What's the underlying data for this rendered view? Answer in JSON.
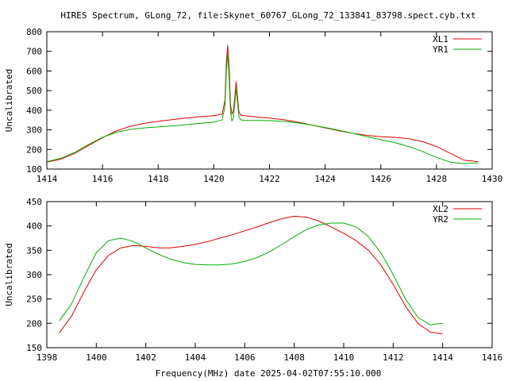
{
  "chart_data": [
    {
      "type": "line",
      "title": "HIRES Spectrum, GLong_72, file:Skynet_60767_GLong_72_133841_83798.spect.cyb.txt",
      "xlabel": "",
      "ylabel": "Uncalibrated",
      "xlim": [
        1414,
        1430
      ],
      "ylim": [
        100,
        800
      ],
      "xticks": [
        "1414",
        "1416",
        "1418",
        "1420",
        "1422",
        "1424",
        "1426",
        "1428",
        "1430"
      ],
      "yticks": [
        "100",
        "200",
        "300",
        "400",
        "500",
        "600",
        "700",
        "800"
      ],
      "legend_position": "top-right",
      "grid": false,
      "series": [
        {
          "name": "XL1",
          "color": "#e00000",
          "x": [
            1414.0,
            1414.5,
            1415.0,
            1415.5,
            1416.0,
            1416.5,
            1417.0,
            1417.5,
            1418.0,
            1418.5,
            1419.0,
            1419.5,
            1420.0,
            1420.3,
            1420.4,
            1420.45,
            1420.5,
            1420.55,
            1420.6,
            1420.65,
            1420.7,
            1420.75,
            1420.8,
            1420.85,
            1420.9,
            1420.95,
            1421.0,
            1421.1,
            1421.3,
            1421.6,
            1422.0,
            1422.5,
            1423.0,
            1423.5,
            1424.0,
            1424.5,
            1425.0,
            1425.5,
            1426.0,
            1426.5,
            1427.0,
            1427.5,
            1428.0,
            1428.5,
            1429.0,
            1429.5
          ],
          "y": [
            135,
            150,
            180,
            220,
            260,
            295,
            318,
            333,
            343,
            352,
            360,
            367,
            372,
            380,
            450,
            650,
            730,
            620,
            430,
            380,
            395,
            460,
            545,
            470,
            395,
            378,
            374,
            372,
            369,
            365,
            360,
            352,
            340,
            325,
            310,
            295,
            282,
            272,
            265,
            262,
            255,
            240,
            215,
            180,
            145,
            138
          ]
        },
        {
          "name": "YR1",
          "color": "#00b000",
          "x": [
            1414.0,
            1414.5,
            1415.0,
            1415.5,
            1416.0,
            1416.5,
            1417.0,
            1417.5,
            1418.0,
            1418.5,
            1419.0,
            1419.5,
            1420.0,
            1420.3,
            1420.4,
            1420.45,
            1420.5,
            1420.55,
            1420.6,
            1420.65,
            1420.7,
            1420.75,
            1420.8,
            1420.85,
            1420.9,
            1420.95,
            1421.0,
            1421.1,
            1421.3,
            1421.6,
            1422.0,
            1422.5,
            1423.0,
            1423.5,
            1424.0,
            1424.5,
            1425.0,
            1425.5,
            1426.0,
            1426.5,
            1427.0,
            1427.5,
            1428.0,
            1428.5,
            1429.0,
            1429.5
          ],
          "y": [
            138,
            155,
            185,
            225,
            262,
            288,
            302,
            310,
            315,
            320,
            326,
            333,
            340,
            350,
            420,
            600,
            690,
            560,
            390,
            345,
            360,
            430,
            510,
            440,
            370,
            354,
            350,
            349,
            348,
            348,
            347,
            343,
            336,
            325,
            312,
            298,
            282,
            265,
            250,
            235,
            215,
            190,
            160,
            135,
            128,
            132
          ]
        }
      ]
    },
    {
      "type": "line",
      "title": "",
      "xlabel": "Frequency(MHz) date 2025-04-02T07:55:10.000",
      "ylabel": "Uncalibrated",
      "xlim": [
        1398,
        1416
      ],
      "ylim": [
        150,
        450
      ],
      "xticks": [
        "1398",
        "1400",
        "1402",
        "1404",
        "1406",
        "1408",
        "1410",
        "1412",
        "1414",
        "1416"
      ],
      "yticks": [
        "150",
        "200",
        "250",
        "300",
        "350",
        "400",
        "450"
      ],
      "legend_position": "top-right",
      "grid": false,
      "series": [
        {
          "name": "XL2",
          "color": "#e00000",
          "x": [
            1398.5,
            1399.0,
            1399.5,
            1400.0,
            1400.5,
            1401.0,
            1401.5,
            1402.0,
            1402.5,
            1403.0,
            1403.5,
            1404.0,
            1404.5,
            1405.0,
            1405.5,
            1406.0,
            1406.5,
            1407.0,
            1407.5,
            1408.0,
            1408.5,
            1409.0,
            1409.5,
            1410.0,
            1410.5,
            1411.0,
            1411.5,
            1412.0,
            1412.5,
            1413.0,
            1413.5,
            1414.0
          ],
          "y": [
            180,
            215,
            265,
            310,
            340,
            355,
            360,
            358,
            355,
            355,
            358,
            362,
            368,
            375,
            382,
            390,
            398,
            407,
            415,
            420,
            418,
            410,
            398,
            385,
            370,
            350,
            320,
            280,
            235,
            200,
            182,
            178
          ]
        },
        {
          "name": "YR2",
          "color": "#00b000",
          "x": [
            1398.5,
            1399.0,
            1399.5,
            1400.0,
            1400.5,
            1401.0,
            1401.5,
            1402.0,
            1402.5,
            1403.0,
            1403.5,
            1404.0,
            1404.5,
            1405.0,
            1405.5,
            1406.0,
            1406.5,
            1407.0,
            1407.5,
            1408.0,
            1408.5,
            1409.0,
            1409.5,
            1410.0,
            1410.5,
            1411.0,
            1411.5,
            1412.0,
            1412.5,
            1413.0,
            1413.5,
            1414.0
          ],
          "y": [
            205,
            240,
            295,
            345,
            370,
            375,
            368,
            355,
            342,
            332,
            325,
            321,
            320,
            320,
            322,
            327,
            335,
            347,
            362,
            378,
            393,
            402,
            406,
            406,
            398,
            378,
            345,
            300,
            250,
            212,
            197,
            200
          ]
        }
      ]
    }
  ]
}
